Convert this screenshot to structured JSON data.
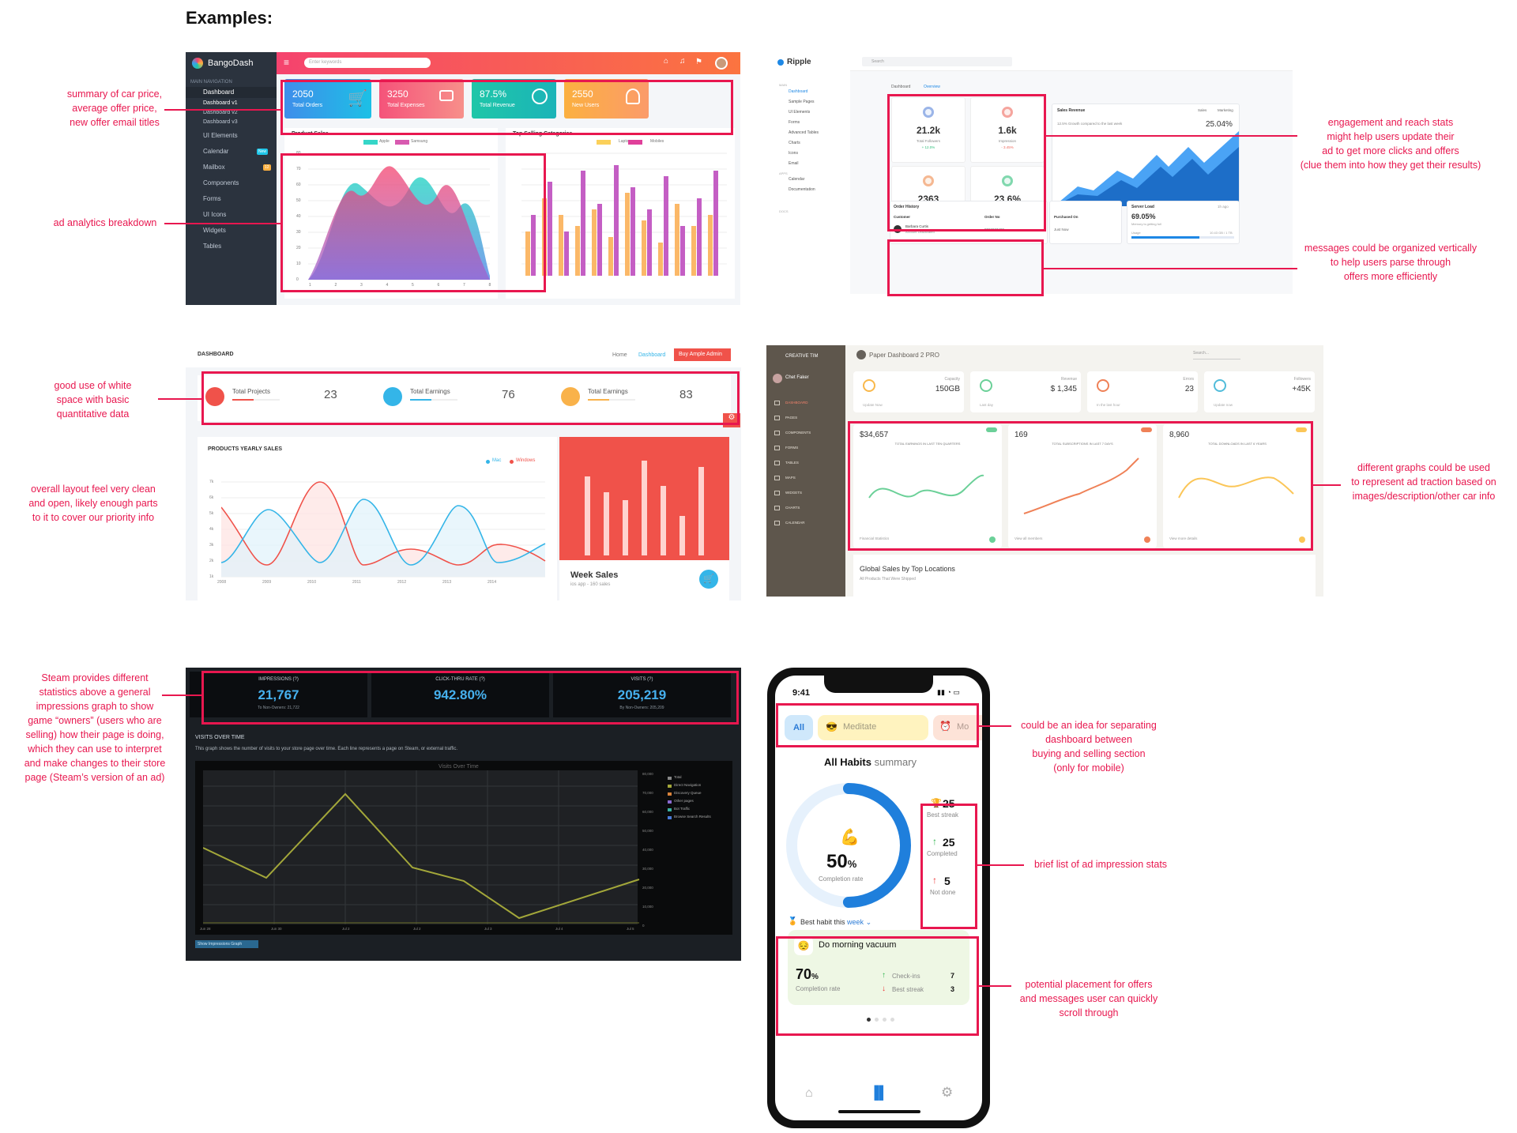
{
  "page": {
    "title": "Examples:"
  },
  "annotations": {
    "bango_summary": "summary of car price,\naverage offer price,\nnew offer email titles",
    "bango_analytics": "ad analytics breakdown",
    "ripple_engagement": "engagement and reach stats\nmight help users update their\nad to get more clicks and offers\n(clue them into how they get their results)",
    "ripple_messages": "messages could be organized vertically\nto help users parse through\noffers more efficiently",
    "ample_whitespace": "good use of white\nspace with basic\nquantitative data",
    "ample_layout": "overall layout feel very clean\nand open, likely enough parts\nto it to cover our priority info",
    "paper_graphs": "different graphs could be used\nto represent ad traction based on\nimages/description/other car info",
    "steam_stats": "Steam provides different\nstatistics above a general\nimpressions graph to show\ngame “owners” (users who are\nselling) how their page is doing,\nwhich they can use to interpret\nand make changes to their store\npage (Steam’s version of an ad)",
    "mobile_tabs": "could be an idea for separating\ndashboard between\nbuying and selling section\n(only for mobile)",
    "mobile_stats": "brief list of ad impression stats",
    "mobile_offers": "potential placement for offers\nand messages user can quickly\nscroll through"
  },
  "bango": {
    "brand": "BangoDash",
    "search_placeholder": "Enter keywords",
    "nav_heading": "MAIN NAVIGATION",
    "nav": [
      {
        "label": "Dashboard"
      },
      {
        "label": "Dashboard v1"
      },
      {
        "label": "Dashboard v2"
      },
      {
        "label": "Dashboard v3"
      },
      {
        "label": "UI Elements"
      },
      {
        "label": "Calendar",
        "badge": "New"
      },
      {
        "label": "Mailbox",
        "badge": "12"
      },
      {
        "label": "Components"
      },
      {
        "label": "Forms"
      },
      {
        "label": "UI Icons"
      },
      {
        "label": "Widgets"
      },
      {
        "label": "Tables"
      }
    ],
    "cards": [
      {
        "value": "2050",
        "label": "Total Orders"
      },
      {
        "value": "3250",
        "label": "Total Expenses"
      },
      {
        "value": "87.5%",
        "label": "Total Revenue"
      },
      {
        "value": "2550",
        "label": "New Users"
      }
    ],
    "product_sales_title": "Product Sales",
    "product_legend": [
      "Apple",
      "Samsung"
    ],
    "top_selling_title": "Top Selling Categories",
    "top_legend": [
      "Laptops",
      "Mobiles"
    ],
    "y_ticks_left": [
      "80",
      "70",
      "60",
      "50",
      "40",
      "30",
      "20",
      "10",
      "0"
    ],
    "x_ticks_left": [
      "1",
      "2",
      "3",
      "4",
      "5",
      "6",
      "7",
      "8"
    ],
    "y_ticks_right": [
      "9",
      "8",
      "7",
      "6",
      "5",
      "4",
      "3",
      "2",
      "1",
      "0"
    ],
    "x_ticks_right": [
      "1",
      "2",
      "3",
      "4",
      "5",
      "6",
      "7",
      "8"
    ],
    "colors": {
      "orders": "#38a0ec",
      "expenses": "#f5537a",
      "revenue": "#1fc6a8",
      "users": "#fbb040",
      "header": "#f5436e"
    }
  },
  "ripple": {
    "brand": "Ripple",
    "search_placeholder": "Search",
    "breadcrumb": [
      "Dashboard",
      "Overview"
    ],
    "nav_sections": [
      "MAIN",
      "APPS",
      "DOCS"
    ],
    "nav": [
      "Dashboard",
      "Sample Pages",
      "UI Elements",
      "Forms",
      "Advanced Tables",
      "Charts",
      "Icons",
      "Email",
      "Calendar",
      "Documentation"
    ],
    "stats": [
      {
        "value": "21.2k",
        "label": "Total Followers",
        "change": "+ 12.0%"
      },
      {
        "value": "1.6k",
        "label": "Impression",
        "change": "- 3.45%"
      },
      {
        "value": "2363",
        "label": "Reach",
        "change": "- 12.13%"
      },
      {
        "value": "23.6%",
        "label": "Engagement Rate",
        "change": "+ 61.22%"
      }
    ],
    "sales_title": "Sales Revenue",
    "sales_sub": "12.5% Growth compared to the last week",
    "sales_legend": [
      "Sales",
      "Marketing"
    ],
    "sales_value": "25.04%",
    "order_title": "Order History",
    "order_cols": [
      "Customer",
      "Order No"
    ],
    "order_row": {
      "name": "Barbara Curtis",
      "status": "Account Deactivated",
      "no": "8022037409"
    },
    "purchased": "Purchased On",
    "purchased_val": "Just Now",
    "server_title": "Server Load",
    "server_ago": "1h ago",
    "server_val": "69.05%",
    "server_sub": "Memory is getting full",
    "usage_label": "Usage",
    "usage_val": "10.43 GB / 1 TB"
  },
  "ample": {
    "heading": "DASHBOARD",
    "breadcrumb": [
      "Home",
      "Dashboard"
    ],
    "buy_button": "Buy Ample Admin",
    "metrics": [
      {
        "label": "Total Projects",
        "value": "23",
        "color": "#f0524a"
      },
      {
        "label": "Total Earnings",
        "value": "76",
        "color": "#34b5e8"
      },
      {
        "label": "Total Earnings",
        "value": "83",
        "color": "#f9b24a"
      }
    ],
    "chart_title": "PRODUCTS YEARLY SALES",
    "legend": [
      "Mac",
      "Windows"
    ],
    "y_ticks": [
      "7k",
      "6k",
      "5k",
      "4k",
      "3k",
      "2k",
      "1k"
    ],
    "x_ticks": [
      "2008",
      "2009",
      "2010",
      "2011",
      "2012",
      "2013",
      "2014"
    ],
    "week_title": "Week Sales",
    "week_sub": "ios app - 160 sales"
  },
  "paper": {
    "brand": "CREATIVE TIM",
    "user": "Chet Faker",
    "title": "Paper Dashboard 2 PRO",
    "search": "Search...",
    "nav": [
      "DASHBOARD",
      "PAGES",
      "COMPONENTS",
      "FORMS",
      "TABLES",
      "MAPS",
      "WIDGETS",
      "CHARTS",
      "CALENDAR"
    ],
    "stats": [
      {
        "label": "Capacity",
        "value": "150GB",
        "foot": "Update Now"
      },
      {
        "label": "Revenue",
        "value": "$ 1,345",
        "foot": "Last day"
      },
      {
        "label": "Errors",
        "value": "23",
        "foot": "In the last hour"
      },
      {
        "label": "Followers",
        "value": "+45K",
        "foot": "Update now"
      }
    ],
    "graphs": [
      {
        "value": "$34,657",
        "caption": "TOTAL EARNINGS IN LAST TEN QUARTERS",
        "foot": "Financial Statistics"
      },
      {
        "value": "169",
        "caption": "TOTAL SUBSCRIPTIONS IN LAST 7 DAYS",
        "foot": "View all members"
      },
      {
        "value": "8,960",
        "caption": "TOTAL DOWNLOADS IN LAST 6 YEARS",
        "foot": "View more details"
      }
    ],
    "global_title": "Global Sales by Top Locations",
    "global_sub": "All Products That Were Shipped"
  },
  "steam": {
    "metrics": [
      {
        "label": "IMPRESSIONS (?)",
        "value": "21,767",
        "sub": "To Non-Owners: 21,722"
      },
      {
        "label": "CLICK-THRU RATE (?)",
        "value": "942.80%",
        "sub": ""
      },
      {
        "label": "VISITS (?)",
        "value": "205,219",
        "sub": "By Non-Owners: 205,209"
      }
    ],
    "section_title": "VISITS OVER TIME",
    "section_desc": "This graph shows the number of visits to your store page over time. Each line represents a page on Steam, or external traffic.",
    "chart_title": "Visits Over Time",
    "legend": [
      "Total",
      "Direct Navigation",
      "Discovery Queue",
      "Other pages",
      "Bot Traffic",
      "Browse Search Results"
    ],
    "y_ticks": [
      "80,000",
      "70,000",
      "60,000",
      "50,000",
      "40,000",
      "30,000",
      "20,000",
      "10,000",
      "0"
    ],
    "x_ticks": [
      "Jun 28",
      "Jun 30",
      "Jul 2",
      "Jul 2",
      "Jul 3",
      "Jul 4",
      "Jul 5"
    ],
    "button": "Show Impressions Graph"
  },
  "mobile": {
    "time": "9:41",
    "tabs": [
      "All",
      "Meditate",
      "Mo"
    ],
    "heading": "All Habits",
    "heading_suffix": "summary",
    "percent": "50",
    "percent_unit": "%",
    "percent_label": "Completion rate",
    "stats": [
      {
        "value": "25",
        "label": "Best streak"
      },
      {
        "value": "25",
        "label": "Completed"
      },
      {
        "value": "5",
        "label": "Not done"
      }
    ],
    "best_label": "Best habit this",
    "best_period": "week",
    "habit_name": "Do morning vacuum",
    "habit_percent": "70",
    "habit_rate_label": "Completion rate",
    "checkins_label": "Check-ins",
    "checkins_val": "7",
    "streak_label": "Best streak",
    "streak_val": "3"
  }
}
